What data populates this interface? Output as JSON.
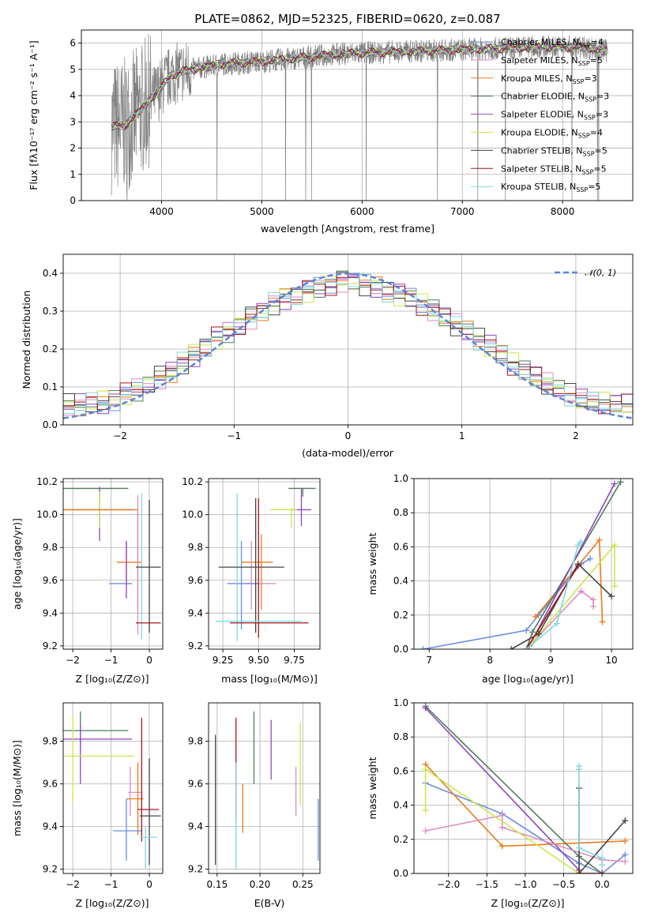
{
  "colors": [
    "#6a8fdc",
    "#e97b1e",
    "#4e7e58",
    "#8f46c0",
    "#de8cc4",
    "#c9e84a",
    "#454545",
    "#a4161e",
    "#7fd8dc"
  ],
  "chart_data": [
    {
      "id": "spectrum",
      "type": "line",
      "title": "PLATE=0862, MJD=52325, FIBERID=0620, z=0.087",
      "xlabel": "wavelength [Angstrom, rest frame]",
      "ylabel": "Flux [fλ10⁻¹⁷ erg cm⁻² s⁻¹ A⁻¹]",
      "xlim": [
        3200,
        8700
      ],
      "ylim": [
        0,
        6.5
      ],
      "xticks": [
        4000,
        5000,
        6000,
        7000,
        8000
      ],
      "yticks": [
        0,
        1,
        2,
        3,
        4,
        5,
        6
      ],
      "data_color": "#808080",
      "continuum_knots": {
        "x": [
          3500,
          3650,
          3800,
          3950,
          4100,
          4300,
          4600,
          5000,
          5400,
          5800,
          6200,
          6600,
          7000,
          7400,
          7800,
          8200,
          8450
        ],
        "y": [
          2.8,
          2.9,
          3.5,
          4.1,
          4.8,
          5.0,
          5.2,
          5.3,
          5.45,
          5.6,
          5.65,
          5.7,
          5.75,
          5.8,
          5.85,
          5.85,
          5.7
        ]
      },
      "series": [
        {
          "name": "Chabrier MILES, N$_{SSP}$=4",
          "label": "Chabrier MILES, N",
          "n": "4",
          "color": "#6a8fdc"
        },
        {
          "name": "Salpeter MILES, N$_{SSP}$=5",
          "label": "Salpeter MILES, N",
          "n": "5",
          "color": "#de8cc4"
        },
        {
          "name": "Kroupa MILES, N$_{SSP}$=3",
          "label": "Kroupa MILES, N",
          "n": "3",
          "color": "#e97b1e"
        },
        {
          "name": "Chabrier ELODIE, N$_{SSP}$=3",
          "label": "Chabrier ELODIE, N",
          "n": "3",
          "color": "#4e7e58"
        },
        {
          "name": "Salpeter ELODIE, N$_{SSP}$=3",
          "label": "Salpeter ELODIE, N",
          "n": "3",
          "color": "#8f46c0"
        },
        {
          "name": "Kroupa ELODIE, N$_{SSP}$=4",
          "label": "Kroupa ELODIE, N",
          "n": "4",
          "color": "#c9e84a"
        },
        {
          "name": "Chabrier STELIB, N$_{SSP}$=5",
          "label": "Chabrier STELIB, N",
          "n": "5",
          "color": "#454545"
        },
        {
          "name": "Salpeter STELIB, N$_{SSP}$=5",
          "label": "Salpeter STELIB, N",
          "n": "5",
          "color": "#a4161e"
        },
        {
          "name": "Kroupa STELIB, N$_{SSP}$=5",
          "label": "Kroupa STELIB, N",
          "n": "5",
          "color": "#7fd8dc"
        }
      ],
      "legend_sub": "SSP",
      "legend_loc": "right"
    },
    {
      "id": "residuals",
      "type": "histogram",
      "xlabel": "(data-model)/error",
      "ylabel": "Normed distribution",
      "xlim": [
        -2.5,
        2.5
      ],
      "ylim": [
        0,
        0.45
      ],
      "xticks": [
        -2,
        -1,
        0,
        1,
        2
      ],
      "yticks": [
        0.0,
        0.1,
        0.2,
        0.3,
        0.4
      ],
      "bin_width": 0.1,
      "reference": {
        "name": "N(0,1)",
        "label": "𝒩(0, 1)",
        "color": "#5b86d9",
        "mu": 0,
        "sigma": 1
      },
      "shape_knots": {
        "x": [
          0.0,
          0.3,
          0.6,
          0.9,
          1.2,
          1.5,
          1.8,
          2.1,
          2.5
        ],
        "y": [
          0.385,
          0.36,
          0.33,
          0.275,
          0.22,
          0.15,
          0.1,
          0.06,
          0.05
        ]
      },
      "legend_loc": "top-right"
    },
    {
      "id": "age_vs_Z",
      "type": "errorbar",
      "xlabel": "Z [log₁₀(Z/Z⊙)]",
      "ylabel": "age  [log₁₀(age/yr)]",
      "xlim": [
        -2.25,
        0.35
      ],
      "ylim": [
        9.18,
        10.22
      ],
      "xticks": [
        -2,
        -1,
        0
      ],
      "yticks": [
        9.2,
        9.4,
        9.6,
        9.8,
        10.0,
        10.2
      ],
      "points": [
        {
          "x": -2.3,
          "x0": -2.3,
          "x1": -0.55,
          "y": 10.16,
          "y0": 10.16,
          "y1": 10.16,
          "c": 2
        },
        {
          "x": -1.3,
          "x0": -2.3,
          "x1": -0.45,
          "y": 10.03,
          "y0": 9.84,
          "y1": 10.17,
          "c": 3
        },
        {
          "x": -1.3,
          "x0": -2.3,
          "x1": -0.55,
          "y": 10.03,
          "y0": 9.92,
          "y1": 10.14,
          "c": 5
        },
        {
          "x": -0.3,
          "x0": -2.3,
          "x1": -0.3,
          "y": 10.03,
          "y0": 9.42,
          "y1": 10.03,
          "c": 1
        },
        {
          "x": -0.6,
          "x0": -0.85,
          "x1": -0.2,
          "y": 9.71,
          "y0": 9.57,
          "y1": 9.84,
          "c": 1
        },
        {
          "x": -0.6,
          "x0": -0.6,
          "x1": -0.6,
          "y": 9.67,
          "y0": 9.49,
          "y1": 9.84,
          "c": 3
        },
        {
          "x": -0.3,
          "x0": -0.3,
          "x1": -0.3,
          "y": 9.9,
          "y0": 9.27,
          "y1": 10.12,
          "c": 4
        },
        {
          "x": -0.8,
          "x0": -1.05,
          "x1": -0.45,
          "y": 9.58,
          "y0": 9.58,
          "y1": 9.58,
          "c": 0
        },
        {
          "x": -0.2,
          "x0": -0.2,
          "x1": -0.2,
          "y": 9.8,
          "y0": 9.24,
          "y1": 10.13,
          "c": 8
        },
        {
          "x": 0.0,
          "x0": -0.35,
          "x1": 0.3,
          "y": 9.68,
          "y0": 9.28,
          "y1": 10.09,
          "c": 6
        },
        {
          "x": 0.0,
          "x0": -0.35,
          "x1": 0.3,
          "y": 9.34,
          "y0": 9.34,
          "y1": 9.34,
          "c": 7
        }
      ]
    },
    {
      "id": "age_vs_mass",
      "type": "errorbar",
      "xlabel": "mass [log₁₀(M/M⊙)]",
      "ylabel": "",
      "xlim": [
        9.15,
        9.93
      ],
      "ylim": [
        9.18,
        10.22
      ],
      "xticks": [
        9.25,
        9.5,
        9.75
      ],
      "yticks": [
        9.2,
        9.4,
        9.6,
        9.8,
        10.0,
        10.2
      ],
      "points": [
        {
          "x": 9.81,
          "x0": 9.71,
          "x1": 9.9,
          "y": 10.16,
          "y0": 10.11,
          "y1": 10.16,
          "c": 2
        },
        {
          "x": 9.8,
          "x0": 9.72,
          "x1": 9.87,
          "y": 10.03,
          "y0": 9.93,
          "y1": 10.16,
          "c": 3
        },
        {
          "x": 9.73,
          "x0": 9.58,
          "x1": 9.77,
          "y": 10.03,
          "y0": 9.92,
          "y1": 10.04,
          "c": 5
        },
        {
          "x": 9.52,
          "x0": 9.38,
          "x1": 9.6,
          "y": 9.71,
          "y0": 9.42,
          "y1": 9.88,
          "c": 1
        },
        {
          "x": 9.45,
          "x0": 9.4,
          "x1": 9.62,
          "y": 9.58,
          "y0": 9.42,
          "y1": 9.84,
          "c": 4
        },
        {
          "x": 9.38,
          "x0": 9.28,
          "x1": 9.5,
          "y": 9.58,
          "y0": 9.3,
          "y1": 9.84,
          "c": 0
        },
        {
          "x": 9.35,
          "x0": 9.35,
          "x1": 9.35,
          "y": 9.68,
          "y0": 9.23,
          "y1": 10.13,
          "c": 8
        },
        {
          "x": 9.48,
          "x0": 9.22,
          "x1": 9.68,
          "y": 9.68,
          "y0": 9.28,
          "y1": 10.1,
          "c": 6
        },
        {
          "x": 9.5,
          "x0": 9.3,
          "x1": 9.85,
          "y": 9.34,
          "y0": 9.25,
          "y1": 10.1,
          "c": 7
        },
        {
          "x": 9.4,
          "x0": 9.2,
          "x1": 9.8,
          "y": 9.35,
          "y0": 9.35,
          "y1": 9.35,
          "c": 8
        }
      ]
    },
    {
      "id": "weight_vs_age",
      "type": "line",
      "xlabel": "age  [log₁₀(age/yr)]",
      "ylabel": "mass weight",
      "xlim": [
        6.75,
        10.35
      ],
      "ylim": [
        0,
        1
      ],
      "xticks": [
        7,
        8,
        9,
        10
      ],
      "yticks": [
        0.0,
        0.2,
        0.4,
        0.6,
        0.8,
        1.0
      ],
      "series": [
        {
          "c": 0,
          "x": [
            6.9,
            8.6,
            8.8,
            9.5,
            9.65
          ],
          "y": [
            0.0,
            0.11,
            0.2,
            0.5,
            0.53
          ]
        },
        {
          "c": 1,
          "x": [
            8.75,
            9.8,
            9.85
          ],
          "y": [
            0.19,
            0.64,
            0.16
          ]
        },
        {
          "c": 2,
          "x": [
            8.6,
            8.7,
            10.15
          ],
          "y": [
            0.0,
            0.1,
            0.98
          ]
        },
        {
          "c": 3,
          "x": [
            8.6,
            8.65,
            10.05
          ],
          "y": [
            0.0,
            0.02,
            0.97
          ]
        },
        {
          "c": 4,
          "x": [
            8.6,
            9.5,
            9.7,
            9.7
          ],
          "y": [
            0.0,
            0.34,
            0.29,
            0.25
          ]
        },
        {
          "c": 5,
          "x": [
            8.6,
            10.05,
            10.05
          ],
          "y": [
            0.0,
            0.61,
            0.37
          ]
        },
        {
          "c": 6,
          "x": [
            8.35,
            8.8,
            9.45,
            10.0
          ],
          "y": [
            0.0,
            0.09,
            0.5,
            0.31
          ]
        },
        {
          "c": 7,
          "x": [
            8.6,
            9.45
          ],
          "y": [
            0.0,
            0.49
          ]
        },
        {
          "c": 8,
          "x": [
            8.6,
            9.1,
            9.45,
            9.5
          ],
          "y": [
            0.0,
            0.15,
            0.61,
            0.63
          ]
        }
      ]
    },
    {
      "id": "mass_vs_Z",
      "type": "errorbar",
      "xlabel": "Z [log₁₀(Z/Z⊙)]",
      "ylabel": "mass [log₁₀(M/M⊙)]",
      "xlim": [
        -2.25,
        0.35
      ],
      "ylim": [
        9.18,
        9.98
      ],
      "xticks": [
        -2,
        -1,
        0
      ],
      "yticks": [
        9.2,
        9.4,
        9.6,
        9.8
      ],
      "points": [
        {
          "x": -1.8,
          "x0": -2.3,
          "x1": -0.55,
          "y": 9.85,
          "y0": 9.76,
          "y1": 9.94,
          "c": 2
        },
        {
          "x": -1.8,
          "x0": -2.3,
          "x1": -0.45,
          "y": 9.81,
          "y0": 9.6,
          "y1": 9.88,
          "c": 3
        },
        {
          "x": -2.0,
          "x0": -2.3,
          "x1": -0.4,
          "y": 9.73,
          "y0": 9.51,
          "y1": 9.92,
          "c": 5
        },
        {
          "x": -0.5,
          "x0": -0.55,
          "x1": -0.2,
          "y": 9.56,
          "y0": 9.45,
          "y1": 9.68,
          "c": 4
        },
        {
          "x": -0.3,
          "x0": -0.6,
          "x1": -0.15,
          "y": 9.53,
          "y0": 9.36,
          "y1": 9.7,
          "c": 1
        },
        {
          "x": -0.6,
          "x0": -0.95,
          "x1": -0.2,
          "y": 9.38,
          "y0": 9.24,
          "y1": 9.53,
          "c": 0
        },
        {
          "x": -0.2,
          "x0": -0.2,
          "x1": -0.2,
          "y": 9.7,
          "y0": 9.33,
          "y1": 9.91,
          "c": 7
        },
        {
          "x": 0.0,
          "x0": -0.3,
          "x1": 0.25,
          "y": 9.48,
          "y0": 9.48,
          "y1": 9.48,
          "c": 7
        },
        {
          "x": 0.0,
          "x0": -0.25,
          "x1": 0.3,
          "y": 9.45,
          "y0": 9.22,
          "y1": 9.72,
          "c": 6
        },
        {
          "x": -0.1,
          "x0": -0.25,
          "x1": 0.2,
          "y": 9.35,
          "y0": 9.2,
          "y1": 9.4,
          "c": 8
        }
      ]
    },
    {
      "id": "mass_vs_ebv",
      "type": "errorbar",
      "xlabel": "E(B-V)",
      "ylabel": "",
      "xlim": [
        0.14,
        0.27
      ],
      "ylim": [
        9.18,
        9.98
      ],
      "xticks": [
        0.15,
        0.2,
        0.25
      ],
      "yticks": [
        9.2,
        9.4,
        9.6,
        9.8
      ],
      "points": [
        {
          "x": 0.148,
          "x0": 0.148,
          "x1": 0.148,
          "y": 9.5,
          "y0": 9.22,
          "y1": 9.83,
          "c": 6
        },
        {
          "x": 0.172,
          "x0": 0.172,
          "x1": 0.172,
          "y": 9.7,
          "y0": 9.43,
          "y1": 9.91,
          "c": 7
        },
        {
          "x": 0.172,
          "x0": 0.172,
          "x1": 0.172,
          "y": 9.45,
          "y0": 9.2,
          "y1": 9.7,
          "c": 8
        },
        {
          "x": 0.18,
          "x0": 0.18,
          "x1": 0.18,
          "y": 9.5,
          "y0": 9.37,
          "y1": 9.6,
          "c": 1
        },
        {
          "x": 0.193,
          "x0": 0.193,
          "x1": 0.193,
          "y": 9.78,
          "y0": 9.6,
          "y1": 9.94,
          "c": 2
        },
        {
          "x": 0.213,
          "x0": 0.213,
          "x1": 0.213,
          "y": 9.75,
          "y0": 9.62,
          "y1": 9.9,
          "c": 3
        },
        {
          "x": 0.242,
          "x0": 0.242,
          "x1": 0.242,
          "y": 9.55,
          "y0": 9.45,
          "y1": 9.68,
          "c": 4
        },
        {
          "x": 0.247,
          "x0": 0.247,
          "x1": 0.247,
          "y": 9.7,
          "y0": 9.5,
          "y1": 9.89,
          "c": 5
        },
        {
          "x": 0.268,
          "x0": 0.268,
          "x1": 0.268,
          "y": 9.38,
          "y0": 9.24,
          "y1": 9.53,
          "c": 0
        }
      ]
    },
    {
      "id": "weight_vs_Z",
      "type": "line",
      "xlabel": "Z [log₁₀(Z/Z⊙)]",
      "ylabel": "mass weight",
      "xlim": [
        -2.45,
        0.4
      ],
      "ylim": [
        0,
        1
      ],
      "xticks": [
        -2.0,
        -1.5,
        -1.0,
        -0.5,
        0.0
      ],
      "yticks": [
        0.0,
        0.2,
        0.4,
        0.6,
        0.8,
        1.0
      ],
      "series": [
        {
          "c": 0,
          "x": [
            -2.3,
            -1.3,
            -0.3,
            0.0,
            0.3
          ],
          "y": [
            0.53,
            0.35,
            0.06,
            0.0,
            0.11
          ]
        },
        {
          "c": 1,
          "x": [
            -2.3,
            -1.3,
            0.3
          ],
          "y": [
            0.64,
            0.16,
            0.19
          ]
        },
        {
          "c": 2,
          "x": [
            -2.3,
            -0.3,
            0.0
          ],
          "y": [
            0.98,
            0.1,
            0.0
          ]
        },
        {
          "c": 3,
          "x": [
            -2.3,
            -0.3
          ],
          "y": [
            0.97,
            0.02
          ]
        },
        {
          "c": 4,
          "x": [
            -2.3,
            -1.3,
            -1.3,
            0.0,
            0.3
          ],
          "y": [
            0.25,
            0.34,
            0.27,
            0.08,
            0.07
          ]
        },
        {
          "c": 5,
          "x": [
            -2.3,
            -2.3,
            -0.3,
            0.0
          ],
          "y": [
            0.37,
            0.61,
            0.0,
            0.0
          ]
        },
        {
          "c": 6,
          "x": [
            -0.3,
            -0.3,
            -0.3,
            0.3
          ],
          "y": [
            0.5,
            0.0,
            0.0,
            0.31
          ]
        },
        {
          "c": 7,
          "x": [
            -0.3,
            0.0
          ],
          "y": [
            0.0,
            0.0
          ]
        },
        {
          "c": 8,
          "x": [
            -0.3,
            -0.3,
            -0.3,
            0.0,
            0.0
          ],
          "y": [
            0.63,
            0.61,
            0.15,
            0.09,
            0.05
          ]
        }
      ]
    }
  ]
}
